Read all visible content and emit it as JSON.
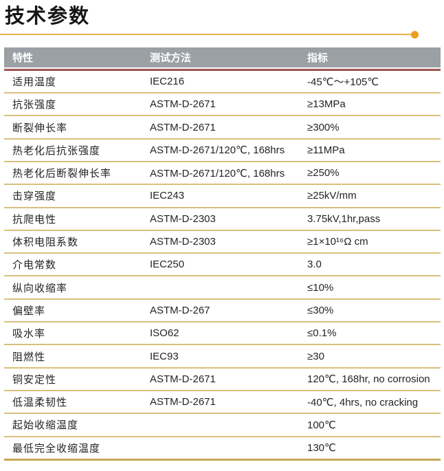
{
  "page": {
    "title": "技术参数"
  },
  "colors": {
    "title_rule_line": "#e2b44c",
    "title_rule_dot": "#ec9d20",
    "header_background": "#9aa0a4",
    "header_text": "#ffffff",
    "header_underline": "#8d3a3a",
    "row_separator": "#d8bf7a"
  },
  "table": {
    "headers": [
      "特性",
      "测试方法",
      "指标"
    ],
    "rows": [
      {
        "property": "适用温度",
        "method": "IEC216",
        "value": "-45℃～+105℃"
      },
      {
        "property": "抗张强度",
        "method": "ASTM-D-2671",
        "value": "≥13MPa"
      },
      {
        "property": "断裂伸长率",
        "method": "ASTM-D-2671",
        "value": "≥300%"
      },
      {
        "property": "热老化后抗张强度",
        "method": "ASTM-D-2671/120℃, 168hrs",
        "value": "≥11MPa"
      },
      {
        "property": "热老化后断裂伸长率",
        "method": "ASTM-D-2671/120℃, 168hrs",
        "value": "≥250%"
      },
      {
        "property": "击穿强度",
        "method": "IEC243",
        "value": "≥25kV/mm"
      },
      {
        "property": "抗爬电性",
        "method": "ASTM-D-2303",
        "value": "3.75kV,1hr,pass"
      },
      {
        "property": "体积电阻系数",
        "method": "ASTM-D-2303",
        "value": "≥1×10¹⁶Ω cm"
      },
      {
        "property": "介电常数",
        "method": "IEC250",
        "value": "3.0"
      },
      {
        "property": "纵向收缩率",
        "method": "",
        "value": "≤10%"
      },
      {
        "property": "偏壁率",
        "method": "ASTM-D-267",
        "value": "≤30%"
      },
      {
        "property": "吸水率",
        "method": "ISO62",
        "value": "≤0.1%"
      },
      {
        "property": "阻燃性",
        "method": "IEC93",
        "value": "≥30"
      },
      {
        "property": "铜安定性",
        "method": "ASTM-D-2671",
        "value": "120℃, 168hr, no corrosion"
      },
      {
        "property": "低温柔韧性",
        "method": "ASTM-D-2671",
        "value": "-40℃, 4hrs, no cracking"
      },
      {
        "property": "起始收缩温度",
        "method": "",
        "value": "100℃"
      },
      {
        "property": "最低完全收缩温度",
        "method": "",
        "value": "130℃"
      }
    ]
  }
}
